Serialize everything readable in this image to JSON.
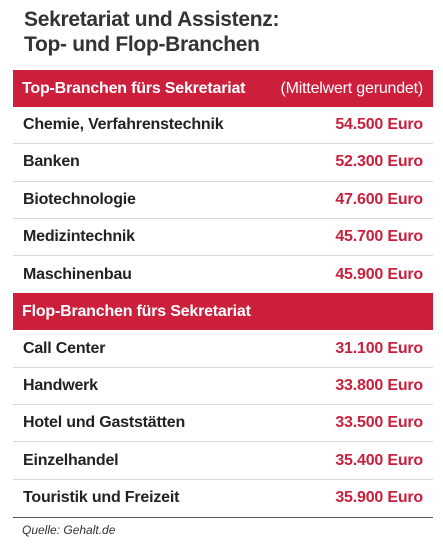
{
  "title_line1": "Sekretariat und Assistenz:",
  "title_line2": "Top- und Flop-Branchen",
  "top_section": {
    "header": "Top-Branchen fürs Sekretariat",
    "note": "(Mittelwert gerundet)",
    "rows": [
      {
        "name": "Chemie, Verfahrenstechnik",
        "value": "54.500 Euro"
      },
      {
        "name": "Banken",
        "value": "52.300 Euro"
      },
      {
        "name": "Biotechnologie",
        "value": "47.600 Euro"
      },
      {
        "name": "Medizintechnik",
        "value": "45.700 Euro"
      },
      {
        "name": "Maschinenbau",
        "value": "45.900 Euro"
      }
    ]
  },
  "flop_section": {
    "header": "Flop-Branchen fürs Sekretariat",
    "rows": [
      {
        "name": "Call Center",
        "value": "31.100 Euro"
      },
      {
        "name": "Handwerk",
        "value": "33.800 Euro"
      },
      {
        "name": "Hotel und Gaststätten",
        "value": "33.500 Euro"
      },
      {
        "name": "Einzelhandel",
        "value": "35.400 Euro"
      },
      {
        "name": "Touristik und Freizeit",
        "value": "35.900 Euro"
      }
    ]
  },
  "source": "Quelle: Gehalt.de",
  "colors": {
    "accent": "#cc1f3c",
    "value_text": "#c8203d",
    "title_text": "#333333"
  }
}
